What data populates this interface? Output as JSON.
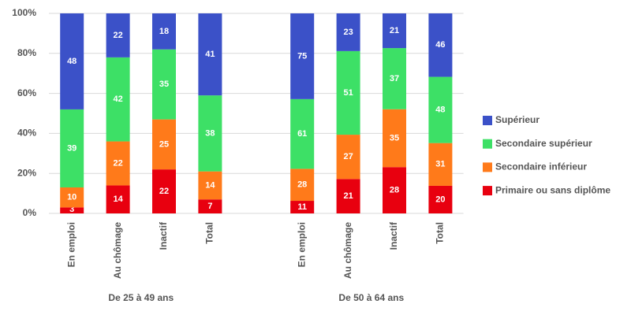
{
  "chart_data": {
    "type": "stacked_percent_bar",
    "normalize": true,
    "categories": [
      "En emploi",
      "Au chômage",
      "Inactif",
      "Total",
      "En emploi",
      "Au chômage",
      "Inactif",
      "Total"
    ],
    "groups": [
      "De 25 à 49 ans",
      "De 50 à 64 ans"
    ],
    "series": [
      {
        "name": "Primaire ou sans diplôme",
        "color": "#e8000f",
        "values": [
          3,
          14,
          22,
          7,
          11,
          21,
          28,
          20
        ]
      },
      {
        "name": "Secondaire inférieur",
        "color": "#ff7a1a",
        "values": [
          10,
          22,
          25,
          14,
          28,
          27,
          35,
          31
        ]
      },
      {
        "name": "Secondaire supérieur",
        "color": "#3de066",
        "values": [
          39,
          42,
          35,
          38,
          61,
          51,
          37,
          48
        ]
      },
      {
        "name": "Supérieur",
        "color": "#3b51c8",
        "values": [
          48,
          22,
          18,
          41,
          75,
          23,
          21,
          46
        ]
      }
    ],
    "ylim": [
      0,
      100
    ],
    "yticks": [
      {
        "value": 0,
        "label": "0%"
      },
      {
        "value": 20,
        "label": "20%"
      },
      {
        "value": 40,
        "label": "40%"
      },
      {
        "value": 60,
        "label": "60%"
      },
      {
        "value": 80,
        "label": "80%"
      },
      {
        "value": 100,
        "label": "100%"
      }
    ],
    "grid": true,
    "legend": "right"
  }
}
